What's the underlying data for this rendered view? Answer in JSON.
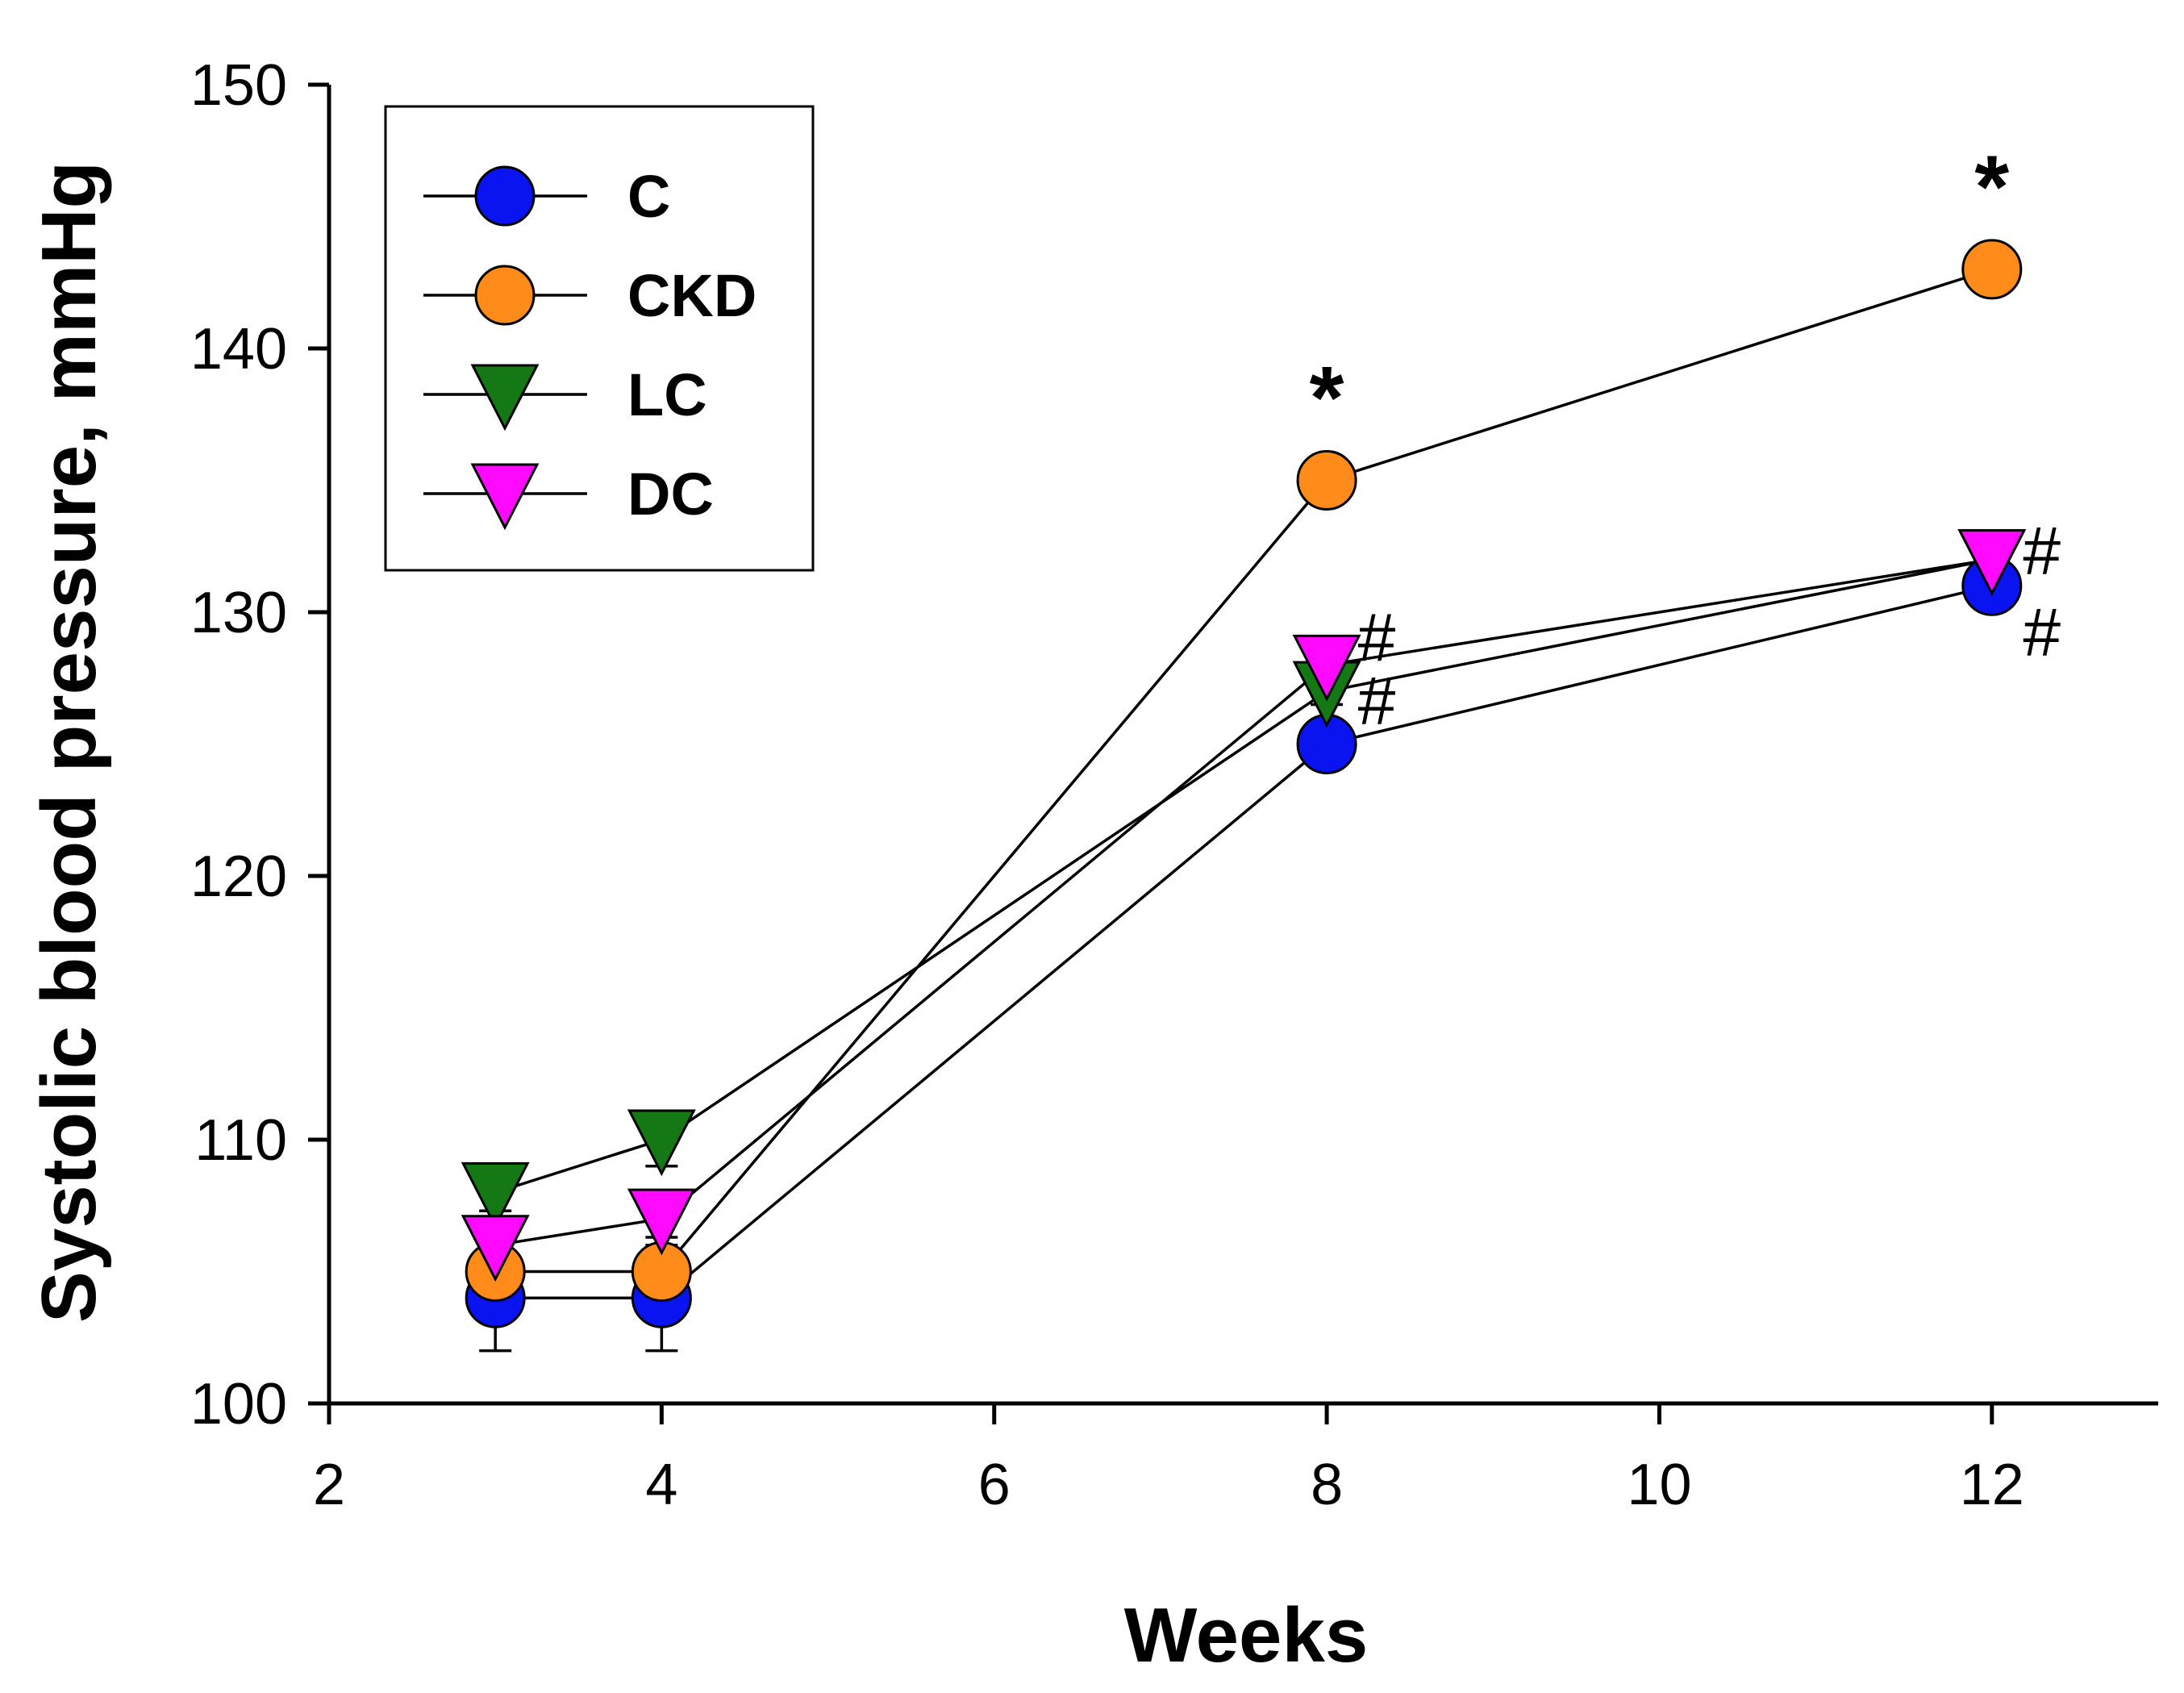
{
  "chart_data": {
    "type": "line",
    "title": "",
    "xlabel": "Weeks",
    "ylabel": "Systolic blood pressure, mmHg",
    "xlim": [
      2,
      13
    ],
    "ylim": [
      100,
      150
    ],
    "xticks": [
      "2",
      "4",
      "6",
      "8",
      "10",
      "12"
    ],
    "yticks": [
      "100",
      "110",
      "120",
      "130",
      "140",
      "150"
    ],
    "x": [
      3,
      4,
      8,
      12
    ],
    "legend_position": "top-left",
    "series": [
      {
        "name": "C",
        "marker": "circle",
        "color": "#0a14f0",
        "values": [
          104,
          104,
          125,
          131
        ],
        "err": [
          2,
          2,
          0.5,
          0.5
        ]
      },
      {
        "name": "CKD",
        "marker": "circle",
        "color": "#ff8c1a",
        "values": [
          105,
          105,
          135,
          143
        ],
        "err": [
          0.5,
          0.5,
          0.5,
          0.5
        ]
      },
      {
        "name": "LC",
        "marker": "triangle-down",
        "color": "#147814",
        "values": [
          108,
          110,
          127,
          132
        ],
        "err": [
          0.7,
          1,
          0.5,
          0.5
        ]
      },
      {
        "name": "DC",
        "marker": "triangle-down",
        "color": "#ff0aff",
        "values": [
          106,
          107,
          128,
          132
        ],
        "err": [
          0.5,
          0.7,
          0.5,
          0.5
        ]
      }
    ],
    "annotations": [
      {
        "text": "*",
        "x": 8,
        "y": 138.2,
        "style": "star"
      },
      {
        "text": "*",
        "x": 12,
        "y": 146.2,
        "style": "star"
      },
      {
        "text": "#",
        "x": 8.3,
        "y": 129.0,
        "style": "hash"
      },
      {
        "text": "#",
        "x": 8.3,
        "y": 126.6,
        "style": "hash"
      },
      {
        "text": "#",
        "x": 12.3,
        "y": 132.3,
        "style": "hash"
      },
      {
        "text": "#",
        "x": 12.3,
        "y": 129.2,
        "style": "hash"
      }
    ]
  }
}
